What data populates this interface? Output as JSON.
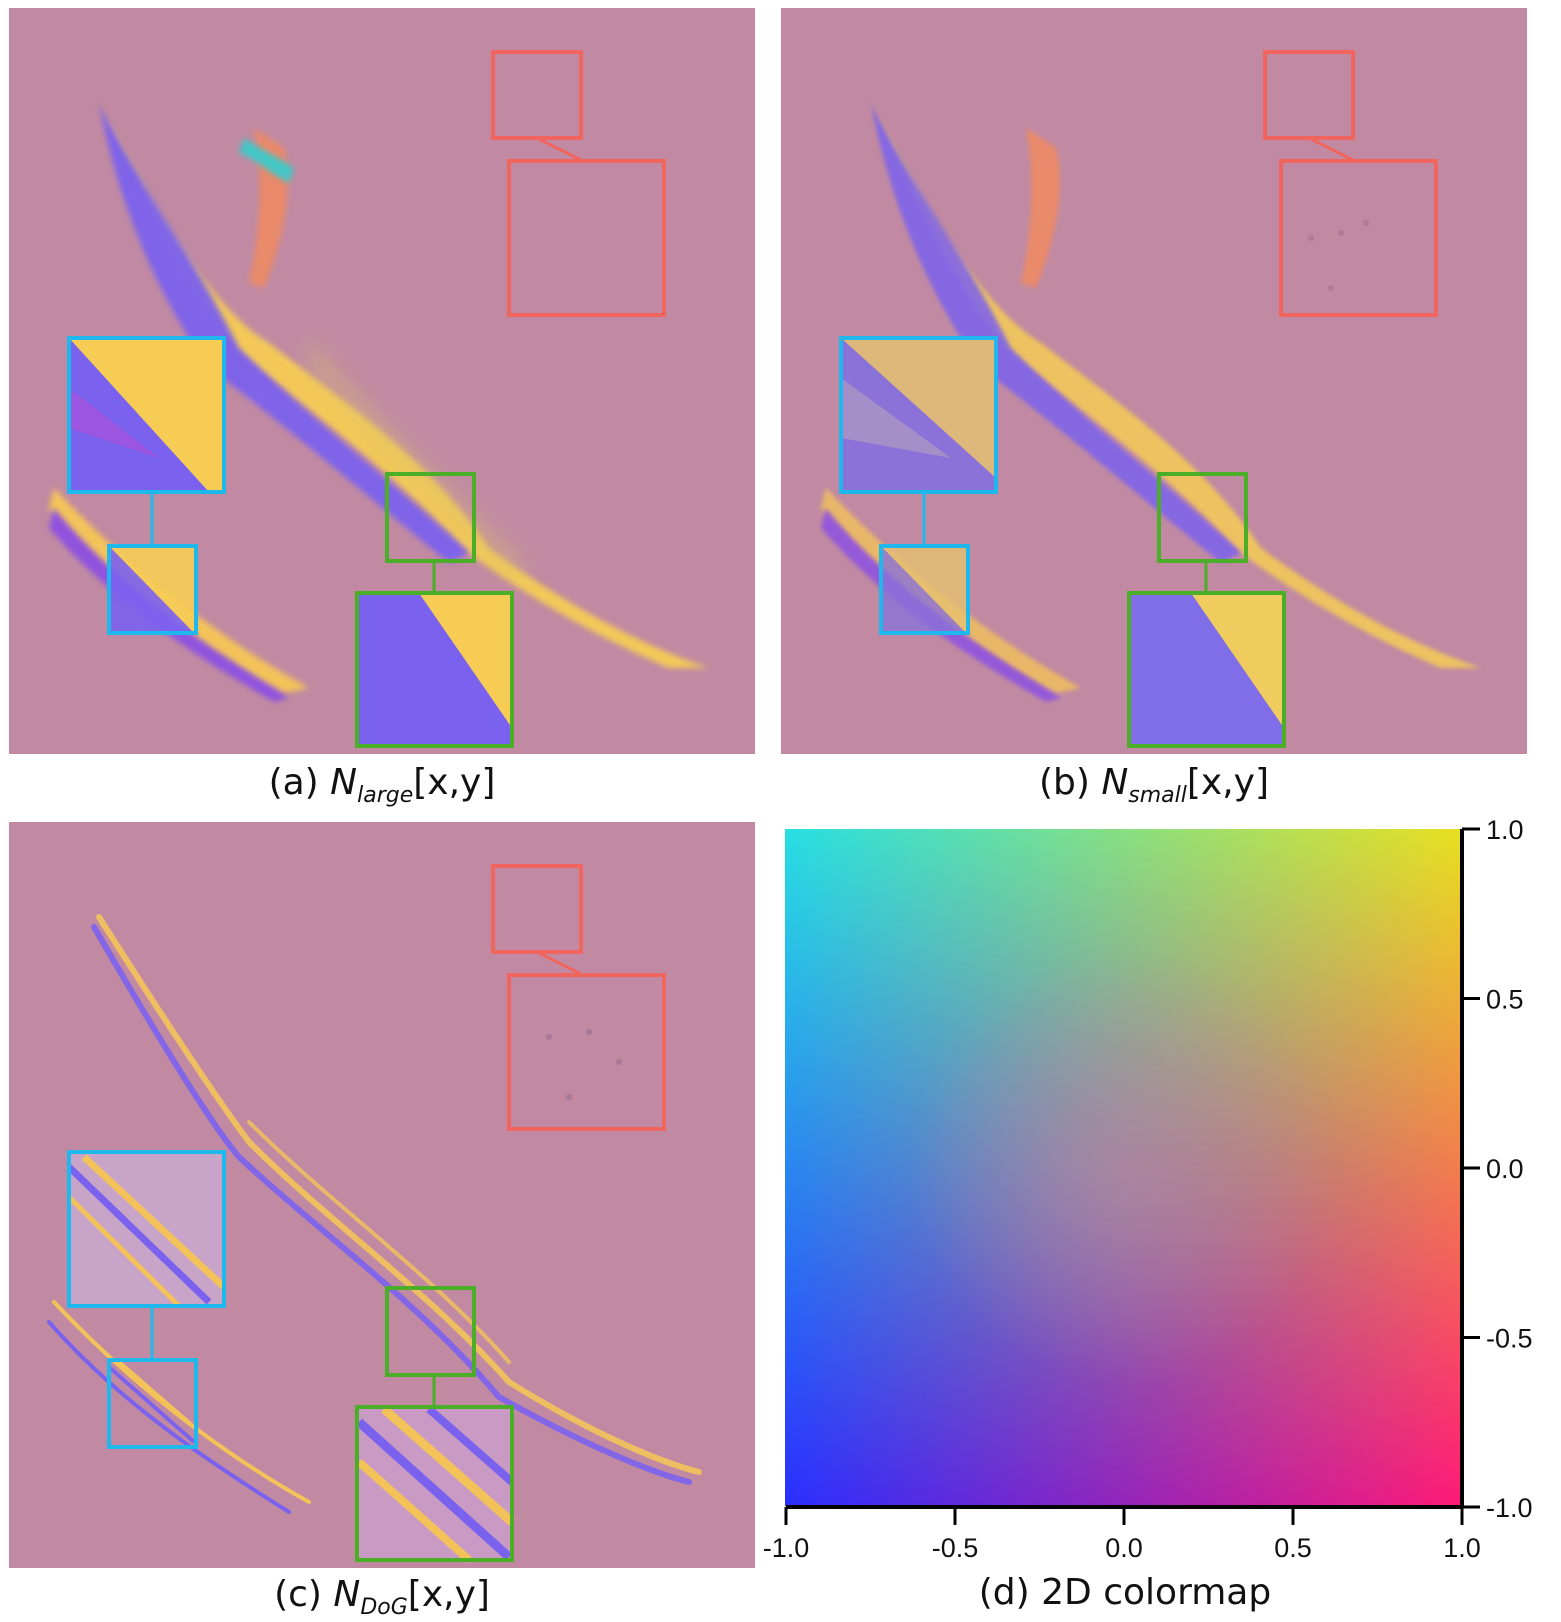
{
  "captions": {
    "a": {
      "prefix": "(a) ",
      "symbol": "N",
      "subscript": "large",
      "suffix": "[x,y]"
    },
    "b": {
      "prefix": "(b) ",
      "symbol": "N",
      "subscript": "small",
      "suffix": "[x,y]"
    },
    "c": {
      "prefix": "(c) ",
      "symbol": "N",
      "subscript": "DoG",
      "suffix": "[x,y]"
    },
    "d": {
      "text": "(d) 2D colormap"
    }
  },
  "colors": {
    "background": "#c18aa2",
    "inset_red": "#f0665f",
    "inset_blue": "#1fb8ec",
    "inset_green": "#4aae26",
    "colormap_corners": {
      "top_left": "#27dfe3",
      "top_right": "#e8e020",
      "bottom_left": "#2a2fff",
      "bottom_right": "#ff1a78",
      "center": "#c18aa2"
    }
  },
  "colormap_axes": {
    "x_ticks": [
      "-1.0",
      "-0.5",
      "0.0",
      "0.5",
      "1.0"
    ],
    "y_ticks": [
      "1.0",
      "0.5",
      "0.0",
      "-0.5",
      "-1.0"
    ],
    "xlim": [
      -1.0,
      1.0
    ],
    "ylim": [
      -1.0,
      1.0
    ]
  }
}
